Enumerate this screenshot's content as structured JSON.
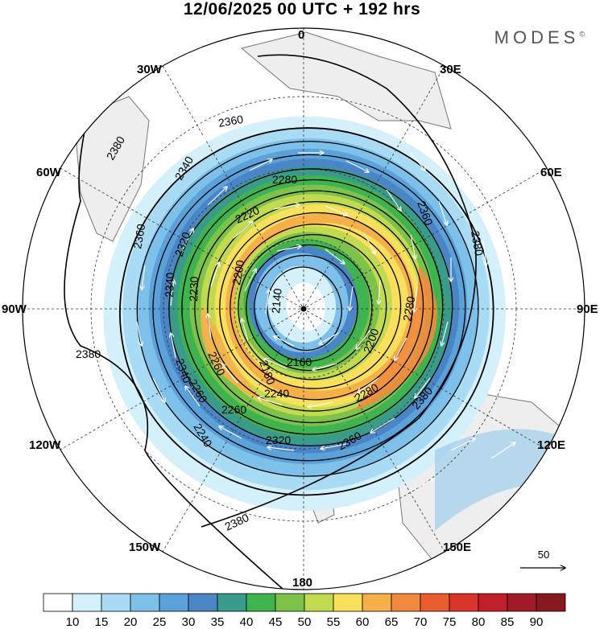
{
  "title": "12/06/2025  00 UTC  + 192 hrs",
  "brand": "MODES",
  "brand_mark": "©",
  "map": {
    "projection": "south-polar-stereographic",
    "longitude_labels": {
      "n0": "0",
      "n30e": "30E",
      "n60e": "60E",
      "n90e": "90E",
      "n120e": "120E",
      "n150e": "150E",
      "n180": "180",
      "n150w": "150W",
      "n120w": "120W",
      "n90w": "90W",
      "n60w": "60W",
      "n30w": "30W"
    },
    "contour_labels": [
      "2360",
      "2380",
      "2360",
      "2340",
      "2280",
      "2220",
      "2320",
      "2360",
      "2380",
      "2340",
      "2230",
      "2200",
      "2140",
      "2280",
      "2240",
      "2260",
      "2180",
      "2160",
      "2200",
      "2280",
      "2380",
      "2380",
      "2340",
      "2260",
      "2240",
      "2260",
      "2320",
      "2360",
      "2380"
    ],
    "wind_reference": "50",
    "colors": {
      "land": "#eeeeee",
      "coast": "#777777",
      "contour": "#000000",
      "wind_arrow": "#ffffff"
    }
  },
  "colorbar": {
    "labels": [
      "10",
      "15",
      "20",
      "25",
      "30",
      "35",
      "40",
      "45",
      "50",
      "55",
      "60",
      "65",
      "70",
      "75",
      "80",
      "85",
      "90"
    ],
    "colors": [
      "#ffffff",
      "#d3f0fb",
      "#a9dcf4",
      "#7dc0ea",
      "#5ba2db",
      "#4a86c6",
      "#3a9b8a",
      "#3fb34f",
      "#7dc34a",
      "#c2da4f",
      "#f8df5c",
      "#f6b04a",
      "#f18a3e",
      "#ea5d31",
      "#d9352a",
      "#c01f2b",
      "#a11a27",
      "#86181e"
    ]
  }
}
